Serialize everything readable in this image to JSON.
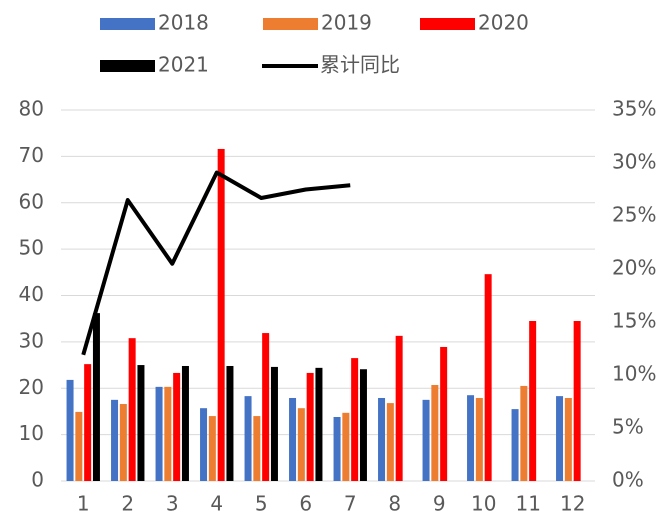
{
  "chart_data": {
    "type": "bar",
    "categories": [
      "1",
      "2",
      "3",
      "4",
      "5",
      "6",
      "7",
      "8",
      "9",
      "10",
      "11",
      "12"
    ],
    "series": [
      {
        "name": "2018",
        "color": "#4472c4",
        "values": [
          21.8,
          17.5,
          20.3,
          15.7,
          18.3,
          17.9,
          13.8,
          17.9,
          17.5,
          18.5,
          15.5,
          18.3
        ]
      },
      {
        "name": "2019",
        "color": "#ed7d31",
        "values": [
          14.9,
          16.6,
          20.3,
          14.0,
          14.0,
          15.7,
          14.7,
          16.8,
          20.7,
          17.9,
          20.5,
          17.9
        ]
      },
      {
        "name": "2020",
        "color": "#ff0000",
        "values": [
          25.2,
          30.8,
          23.3,
          71.6,
          31.9,
          23.3,
          26.5,
          31.3,
          28.9,
          44.6,
          34.5,
          34.5
        ]
      },
      {
        "name": "2021",
        "color": "#000000",
        "values": [
          36.2,
          25.0,
          24.8,
          24.8,
          24.6,
          24.4,
          24.1,
          null,
          null,
          null,
          null,
          null
        ]
      },
      {
        "name": "累计同比",
        "color": "#000000",
        "type": "line",
        "axis": "y2",
        "values": [
          11.9,
          26.5,
          20.5,
          29.1,
          26.7,
          27.5,
          27.9,
          null,
          null,
          null,
          null,
          null
        ]
      }
    ],
    "ylim": [
      0,
      80
    ],
    "yticks": [
      0,
      10,
      20,
      30,
      40,
      50,
      60,
      70,
      80
    ],
    "y2lim": [
      0,
      35
    ],
    "y2ticks": [
      {
        "value": 0,
        "label": "0%"
      },
      {
        "value": 5,
        "label": "5%"
      },
      {
        "value": 10,
        "label": "10%"
      },
      {
        "value": 15,
        "label": "15%"
      },
      {
        "value": 20,
        "label": "20%"
      },
      {
        "value": 25,
        "label": "25%"
      },
      {
        "value": 30,
        "label": "30%"
      },
      {
        "value": 35,
        "label": "35%"
      }
    ],
    "grid": true
  }
}
